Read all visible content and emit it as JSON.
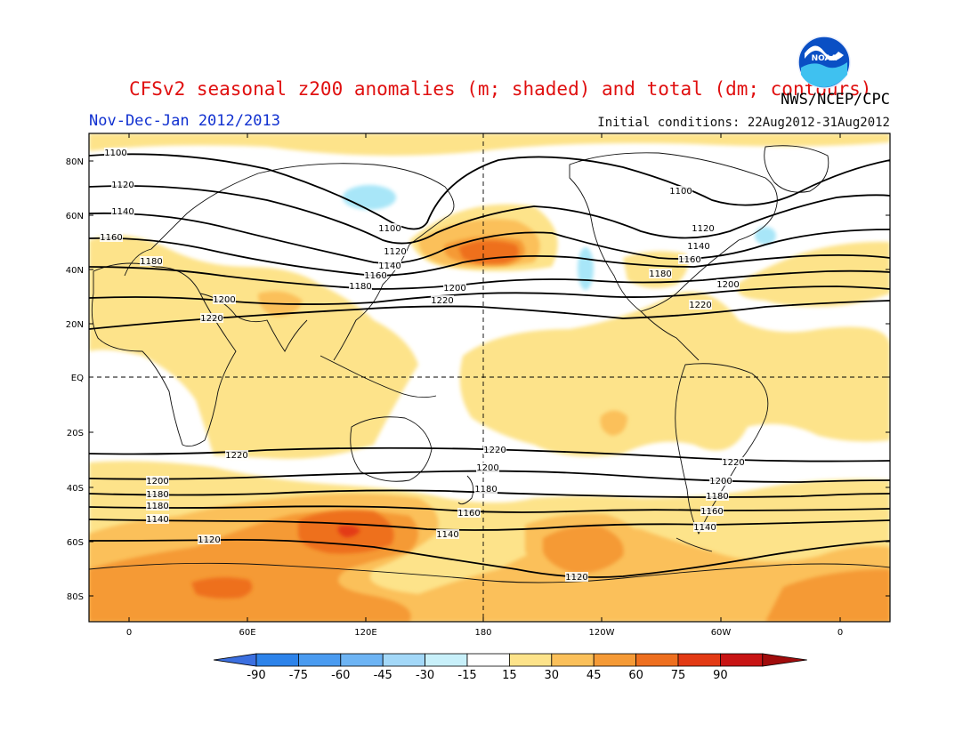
{
  "title": "CFSv2 seasonal z200 anomalies (m; shaded) and total (dm; contours)",
  "period": "Nov-Dec-Jan 2012/2013",
  "initial_conditions": "Initial conditions: 22Aug2012-31Aug2012",
  "organization": "NWS/NCEP/CPC",
  "logo_text": "NOAA",
  "lat_labels": [
    "80N",
    "60N",
    "40N",
    "20N",
    "EQ",
    "20S",
    "40S",
    "60S",
    "80S"
  ],
  "lon_labels": [
    "0",
    "60E",
    "120E",
    "180",
    "120W",
    "60W",
    "0"
  ],
  "colorbar": {
    "labels": [
      "-90",
      "-75",
      "-60",
      "-45",
      "-30",
      "-15",
      "15",
      "30",
      "45",
      "60",
      "75",
      "90"
    ],
    "colors": [
      "#3b6fe0",
      "#2d83ea",
      "#4a9bf0",
      "#6db4f4",
      "#a3d8f8",
      "#c8f0fa",
      "#ffffff",
      "#fde38a",
      "#fbc05a",
      "#f59a36",
      "#ee6f1f",
      "#e33a14",
      "#c81414",
      "#a00c0c"
    ]
  },
  "contour_labels": [
    {
      "text": "1100"
    },
    {
      "text": "1120"
    },
    {
      "text": "1140"
    },
    {
      "text": "1160"
    },
    {
      "text": "1180"
    },
    {
      "text": "1200"
    },
    {
      "text": "1220"
    },
    {
      "text": "1100"
    },
    {
      "text": "1120"
    },
    {
      "text": "1140"
    },
    {
      "text": "1160"
    },
    {
      "text": "1180"
    },
    {
      "text": "1200"
    },
    {
      "text": "1220"
    },
    {
      "text": "1100"
    },
    {
      "text": "1120"
    },
    {
      "text": "1140"
    },
    {
      "text": "1160"
    },
    {
      "text": "1180"
    },
    {
      "text": "1200"
    },
    {
      "text": "1220"
    },
    {
      "text": "1220"
    },
    {
      "text": "1200"
    },
    {
      "text": "1180"
    },
    {
      "text": "1180"
    },
    {
      "text": "1140"
    },
    {
      "text": "1120"
    },
    {
      "text": "1220"
    },
    {
      "text": "1200"
    },
    {
      "text": "1180"
    },
    {
      "text": "1160"
    },
    {
      "text": "1140"
    },
    {
      "text": "1220"
    },
    {
      "text": "1200"
    },
    {
      "text": "1180"
    },
    {
      "text": "1160"
    },
    {
      "text": "1140"
    },
    {
      "text": "1120"
    }
  ]
}
